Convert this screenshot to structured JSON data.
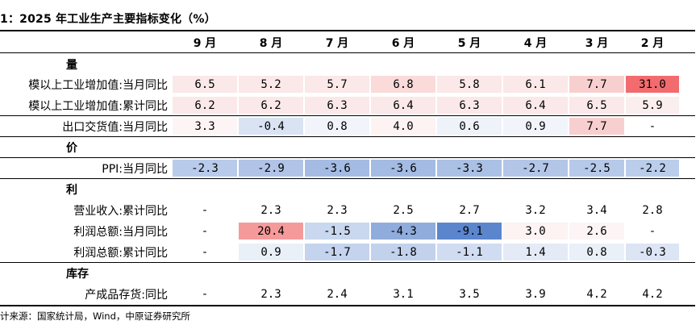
{
  "title": "1：2025 年工业生产主要指标变化（%）",
  "footnote": "计来源：国家统计局，Wind，中原证券研究所",
  "columns": [
    "9 月",
    "8 月",
    "7 月",
    "6 月",
    "5 月",
    "4 月",
    "3 月",
    "2 月"
  ],
  "rows": [
    {
      "type": "section",
      "label": "量"
    },
    {
      "type": "data",
      "label": "模以上工业增加值:当月同比",
      "values": [
        "6.5",
        "5.2",
        "5.7",
        "6.8",
        "5.8",
        "6.1",
        "7.7",
        "31.0"
      ],
      "colors": [
        "#fbe8e8",
        "#fbe8e8",
        "#fbe8e8",
        "#fbdada",
        "#fbe8e8",
        "#fbe8e8",
        "#f8cfcf",
        "#f26b6e"
      ]
    },
    {
      "type": "data",
      "label": "模以上工业增加值:累计同比",
      "values": [
        "6.2",
        "6.2",
        "6.3",
        "6.4",
        "6.3",
        "6.4",
        "6.5",
        "5.9"
      ],
      "colors": [
        "#fbe8e8",
        "#fbe8e8",
        "#fbe8e8",
        "#fbe8e8",
        "#fbe8e8",
        "#fbe8e8",
        "#fbe8e8",
        "#fbeeee"
      ],
      "sep": true
    },
    {
      "type": "data",
      "label": "出口交货值:当月同比",
      "values": [
        "3.3",
        "-0.4",
        "0.8",
        "4.0",
        "0.6",
        "0.9",
        "7.7",
        "-"
      ],
      "colors": [
        "#fdf5f5",
        "#d9e3f3",
        "#f1f4fa",
        "#fdf3f3",
        "#eef2f9",
        "#f1f4fa",
        "#f8cfcf",
        "#ffffff"
      ],
      "sep": true
    },
    {
      "type": "section",
      "label": "价",
      "sep": true
    },
    {
      "type": "data",
      "label": "PPI:当月同比",
      "values": [
        "-2.3",
        "-2.9",
        "-3.6",
        "-3.6",
        "-3.3",
        "-2.7",
        "-2.5",
        "-2.2"
      ],
      "colors": [
        "#b9cbea",
        "#b1c4e7",
        "#a4bbe3",
        "#a4bbe3",
        "#abc0e5",
        "#b3c6e8",
        "#b7c9e9",
        "#bacdeb"
      ],
      "sep": true
    },
    {
      "type": "section",
      "label": "利"
    },
    {
      "type": "data",
      "label": "营业收入:累计同比",
      "values": [
        "-",
        "2.3",
        "2.3",
        "2.5",
        "2.7",
        "3.2",
        "3.4",
        "2.8"
      ],
      "colors": [
        "#ffffff",
        "#ffffff",
        "#ffffff",
        "#ffffff",
        "#ffffff",
        "#ffffff",
        "#ffffff",
        "#ffffff"
      ]
    },
    {
      "type": "data",
      "label": "利润总额:当月同比",
      "values": [
        "-",
        "20.4",
        "-1.5",
        "-4.3",
        "-9.1",
        "3.0",
        "2.6",
        "-"
      ],
      "colors": [
        "#ffffff",
        "#f59a9b",
        "#c9d7ef",
        "#90acdc",
        "#5b86cd",
        "#fdf3f3",
        "#fdf5f5",
        "#ffffff"
      ]
    },
    {
      "type": "data",
      "label": "利润总额:累计同比",
      "values": [
        "-",
        "0.9",
        "-1.7",
        "-1.8",
        "-1.1",
        "1.4",
        "0.8",
        "-0.3"
      ],
      "colors": [
        "#ffffff",
        "#eaf0f8",
        "#c4d3ee",
        "#c2d2ed",
        "#d0dcf1",
        "#e4eaf6",
        "#eaf0f8",
        "#dce5f4"
      ],
      "sep": true
    },
    {
      "type": "section",
      "label": "库存"
    },
    {
      "type": "data",
      "label": "产成品存货:同比",
      "values": [
        "-",
        "2.3",
        "2.4",
        "3.1",
        "3.5",
        "3.9",
        "4.2",
        "4.2"
      ],
      "colors": [
        "#ffffff",
        "#ffffff",
        "#ffffff",
        "#ffffff",
        "#ffffff",
        "#ffffff",
        "#ffffff",
        "#ffffff"
      ]
    }
  ]
}
